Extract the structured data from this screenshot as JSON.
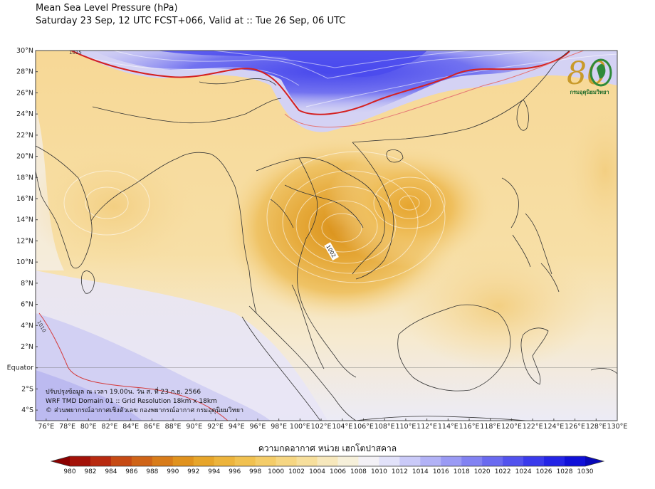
{
  "title_line1": "Mean Sea Level Pressure (hPa)",
  "title_line2": "Saturday 23 Sep, 12 UTC FCST+066, Valid at :: Tue 26 Sep, 06 UTC",
  "map": {
    "lon_range": [
      75,
      130
    ],
    "lat_range": [
      -5,
      30
    ],
    "lon_ticks": [
      "76°E",
      "78°E",
      "80°E",
      "82°E",
      "84°E",
      "86°E",
      "88°E",
      "90°E",
      "92°E",
      "94°E",
      "96°E",
      "98°E",
      "100°E",
      "102°E",
      "104°E",
      "106°E",
      "108°E",
      "110°E",
      "112°E",
      "114°E",
      "116°E",
      "118°E",
      "120°E",
      "122°E",
      "124°E",
      "126°E",
      "128°E",
      "130°E"
    ],
    "lat_ticks": [
      "30°N",
      "28°N",
      "26°N",
      "24°N",
      "22°N",
      "20°N",
      "18°N",
      "16°N",
      "14°N",
      "12°N",
      "10°N",
      "8°N",
      "6°N",
      "4°N",
      "2°N",
      "Equator",
      "2°S",
      "4°S"
    ],
    "contour_labels": [
      "1015",
      "1010",
      "1002"
    ],
    "low_center": {
      "lon": 104,
      "lat": 13
    },
    "colors": {
      "low": "#dd9a1f",
      "mid": "#f7dca0",
      "neutral": "#f5f3f5",
      "high": "#4848ec",
      "contour_1015": "#d42020"
    }
  },
  "notes": [
    "ปรับปรุงข้อมูล ณ เวลา 19.00น. วัน ส. ที่ 23 ก.ย. 2566",
    "WRF TMD Domain 01 :: Grid Resolution 18km x 18km",
    "© ส่วนพยากรณ์อากาศเชิงตัวเลข กองพยากรณ์อากาศ กรมอุตุนิยมวิทยา"
  ],
  "logo": {
    "text": "กรมอุตุนิยมวิทยา",
    "numeral": "80"
  },
  "colorbar": {
    "title": "ความกดอากาศ หน่วย เฮกโตปาสคาล",
    "labels": [
      "980",
      "982",
      "984",
      "986",
      "988",
      "990",
      "992",
      "994",
      "996",
      "998",
      "1000",
      "1002",
      "1004",
      "1006",
      "1008",
      "1010",
      "1012",
      "1014",
      "1016",
      "1018",
      "1020",
      "1022",
      "1024",
      "1026",
      "1028",
      "1030"
    ],
    "colors": [
      "#8b0000",
      "#a31208",
      "#b82a10",
      "#c64a14",
      "#cf6418",
      "#d87c1a",
      "#e0921e",
      "#e7a52a",
      "#edb43c",
      "#f1c150",
      "#f4cc68",
      "#f6d682",
      "#f7df9c",
      "#f7e8bc",
      "#f6f0da",
      "#f3f1f6",
      "#e2e2fa",
      "#cacaf8",
      "#b2b2f6",
      "#9a9af4",
      "#8282f2",
      "#6a6af0",
      "#5252ee",
      "#3a3aec",
      "#2424e6",
      "#1010d8",
      "#0808b8"
    ]
  }
}
